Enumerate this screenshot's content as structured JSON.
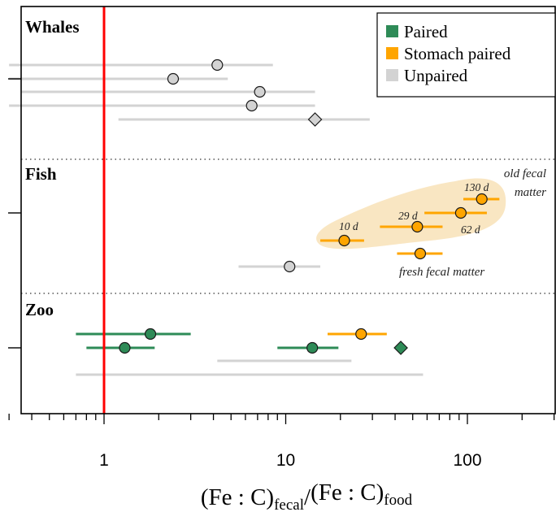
{
  "chart_data": {
    "type": "scatter",
    "xscale": "log",
    "xlim": [
      0.3,
      300
    ],
    "xticks": [
      1,
      10,
      100
    ],
    "xtick_labels": [
      "1",
      "10",
      "100"
    ],
    "xlabel": {
      "main1": "(Fe : C)",
      "sub1": "fecal",
      "sep": "/",
      "main2": "(Fe : C)",
      "sub2": "food"
    },
    "reference_line_x": 1,
    "reference_line_color": "#ff0000",
    "groups": [
      {
        "label": "Whales"
      },
      {
        "label": "Fish"
      },
      {
        "label": "Zoo"
      }
    ],
    "legend": {
      "position": "top-right",
      "entries": [
        {
          "label": "Paired",
          "color": "#2e8b57"
        },
        {
          "label": "Stomach paired",
          "color": "#ffa500"
        },
        {
          "label": "Unpaired",
          "color": "#d3d3d3"
        }
      ]
    },
    "colors": {
      "Paired": "#2e8b57",
      "Stomach paired": "#ffa500",
      "Unpaired": "#d3d3d3",
      "hull": "#f9e6c2"
    },
    "points": [
      {
        "group": "Whales",
        "x": 4.2,
        "lo": 0.3,
        "hi": 8.5,
        "category": "Unpaired",
        "marker": "circle"
      },
      {
        "group": "Whales",
        "x": 2.4,
        "lo": 0.3,
        "hi": 4.8,
        "category": "Unpaired",
        "marker": "circle"
      },
      {
        "group": "Whales",
        "x": 7.2,
        "lo": 0.35,
        "hi": 14.5,
        "category": "Unpaired",
        "marker": "circle"
      },
      {
        "group": "Whales",
        "x": 6.5,
        "lo": 0.3,
        "hi": 14.5,
        "category": "Unpaired",
        "marker": "circle"
      },
      {
        "group": "Whales",
        "x": 14.5,
        "lo": 1.2,
        "hi": 29,
        "category": "Unpaired",
        "marker": "diamond"
      },
      {
        "group": "Fish",
        "x": 120,
        "lo": 95,
        "hi": 150,
        "category": "Stomach paired",
        "marker": "circle"
      },
      {
        "group": "Fish",
        "x": 92,
        "lo": 58,
        "hi": 128,
        "category": "Stomach paired",
        "marker": "circle"
      },
      {
        "group": "Fish",
        "x": 53,
        "lo": 33,
        "hi": 73,
        "category": "Stomach paired",
        "marker": "circle"
      },
      {
        "group": "Fish",
        "x": 21,
        "lo": 15.5,
        "hi": 27,
        "category": "Stomach paired",
        "marker": "circle"
      },
      {
        "group": "Fish",
        "x": 55,
        "lo": 41,
        "hi": 73,
        "category": "Stomach paired",
        "marker": "circle"
      },
      {
        "group": "Fish",
        "x": 10.5,
        "lo": 5.5,
        "hi": 15.5,
        "category": "Unpaired",
        "marker": "circle"
      },
      {
        "group": "Zoo",
        "x": 1.8,
        "lo": 0.7,
        "hi": 3,
        "category": "Paired",
        "marker": "circle"
      },
      {
        "group": "Zoo",
        "x": 26,
        "lo": 17,
        "hi": 36,
        "category": "Stomach paired",
        "marker": "circle"
      },
      {
        "group": "Zoo",
        "x": 1.3,
        "lo": 0.8,
        "hi": 1.9,
        "category": "Paired",
        "marker": "circle"
      },
      {
        "group": "Zoo",
        "x": 14,
        "lo": 9,
        "hi": 19.5,
        "category": "Paired",
        "marker": "circle"
      },
      {
        "group": "Zoo",
        "x": 43,
        "lo": 43,
        "hi": 43,
        "category": "Paired",
        "marker": "diamond"
      },
      {
        "group": "Zoo",
        "x": 10,
        "lo": 4.2,
        "hi": 23,
        "category": "Unpaired",
        "marker": "none"
      },
      {
        "group": "Zoo",
        "x": 6,
        "lo": 0.7,
        "hi": 57,
        "category": "Unpaired",
        "marker": "none"
      }
    ],
    "annotations": [
      {
        "text": "130 d",
        "x": 120
      },
      {
        "text": "29 d",
        "x": 53
      },
      {
        "text": "62 d",
        "x": 92
      },
      {
        "text": "10 d",
        "x": 21
      },
      {
        "text": "old fecal",
        "x": 150
      },
      {
        "text": "matter",
        "x": 150
      },
      {
        "text": "fresh fecal matter",
        "x": 55
      }
    ]
  }
}
